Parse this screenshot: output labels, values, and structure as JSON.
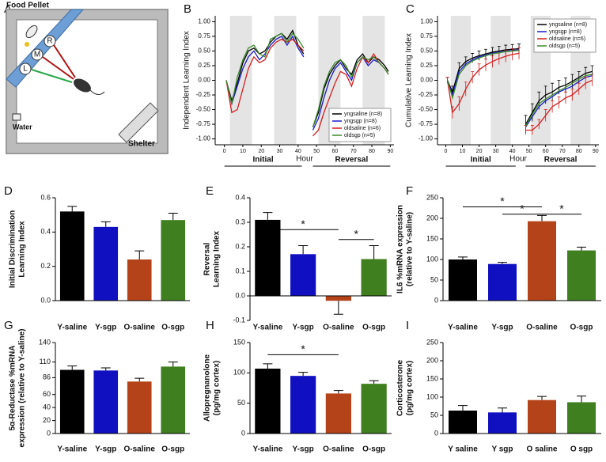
{
  "panel_a": {
    "panel": "A",
    "food": "Food Pellet",
    "r": "R",
    "m": "M",
    "l": "L",
    "water": "Water",
    "shelter": "Shelter"
  },
  "chart_data": [
    {
      "type": "line",
      "panel": "B",
      "ylabel": [
        "Independent Learning Index"
      ],
      "xlabel": "Hour",
      "legend": "lower right",
      "xlim": [
        -5,
        92
      ],
      "xticks": [
        0,
        10,
        20,
        30,
        40,
        50,
        60,
        70,
        80,
        90
      ],
      "ylim": [
        -1.1,
        1.1
      ],
      "yticks": [
        {
          "value": -1,
          "label": "-1.00"
        },
        -0.75,
        {
          "value": -0.5,
          "label": "-0.50"
        },
        -0.25,
        {
          "value": 0,
          "label": "0.00"
        },
        0.25,
        {
          "value": 0.5,
          "label": "0.50"
        },
        0.75,
        {
          "value": 1,
          "label": "1.00"
        }
      ],
      "shaded": [
        [
          3,
          15
        ],
        [
          27,
          39
        ],
        [
          51,
          63
        ],
        [
          75,
          87
        ]
      ],
      "x_groups": [
        {
          "label": "Initial",
          "range": [
            0,
            42
          ]
        },
        {
          "label": "Reversal",
          "range": [
            48,
            90
          ]
        }
      ],
      "x": [
        1,
        4,
        7,
        10,
        13,
        16,
        19,
        22,
        25,
        28,
        31,
        34,
        37,
        40,
        43,
        46,
        48,
        51,
        54,
        57,
        60,
        63,
        66,
        69,
        72,
        75,
        78,
        81,
        84,
        87,
        89
      ],
      "series": [
        {
          "name": "yngsaline (n=8)",
          "color": "#000000",
          "values": [
            0,
            -0.35,
            -0.05,
            0.3,
            0.5,
            0.55,
            0.45,
            0.5,
            0.65,
            0.75,
            0.8,
            0.7,
            0.85,
            0.6,
            0.45,
            null,
            -0.8,
            -0.55,
            -0.15,
            0.1,
            0.25,
            0.35,
            0.2,
            0.1,
            0.35,
            0.45,
            0.3,
            0.4,
            0.35,
            0.25,
            0.15
          ]
        },
        {
          "name": "yngsgp (n=8)",
          "color": "#1a1acc",
          "values": [
            0,
            -0.4,
            -0.1,
            0.2,
            0.4,
            0.5,
            0.35,
            0.45,
            0.6,
            0.7,
            0.75,
            0.6,
            0.75,
            0.55,
            0.4,
            null,
            -0.85,
            -0.65,
            -0.3,
            0,
            0.2,
            0.3,
            0.15,
            0,
            0.3,
            0.4,
            0.25,
            0.35,
            0.3,
            0.2,
            0.1
          ]
        },
        {
          "name": "oldsaline (n=6)",
          "color": "#d41f1f",
          "values": [
            0,
            -0.55,
            -0.5,
            -0.15,
            0.2,
            0.4,
            0.3,
            0.35,
            0.55,
            0.65,
            0.7,
            0.65,
            0.7,
            0.6,
            0.5,
            null,
            -0.95,
            -0.85,
            -0.55,
            -0.3,
            -0.05,
            0.15,
            0.1,
            -0.1,
            0.2,
            0.4,
            0.3,
            0.45,
            0.3,
            0.2,
            0.1
          ]
        },
        {
          "name": "oldsgp (n=5)",
          "color": "#3a8a2a",
          "values": [
            0,
            -0.4,
            0.05,
            0.35,
            0.55,
            0.6,
            0.45,
            0.4,
            0.7,
            0.75,
            0.8,
            0.65,
            0.8,
            0.7,
            0.55,
            null,
            -0.8,
            -0.5,
            -0.1,
            0.15,
            0.3,
            0.35,
            0.25,
            0.05,
            0.3,
            0.4,
            0.35,
            0.4,
            0.3,
            0.2,
            0.1
          ]
        }
      ]
    },
    {
      "type": "line",
      "panel": "C",
      "ylabel": [
        "Cumulative Learning Index"
      ],
      "xlabel": "Hour",
      "legend": "upper right",
      "xlim": [
        -5,
        92
      ],
      "xticks": [
        0,
        10,
        20,
        30,
        40,
        50,
        60,
        70,
        80,
        90
      ],
      "ylim": [
        -1.1,
        1.1
      ],
      "yticks": [
        {
          "value": -1,
          "label": "-1.00"
        },
        -0.75,
        {
          "value": -0.5,
          "label": "-0.50"
        },
        -0.25,
        {
          "value": 0,
          "label": "0.00"
        },
        0.25,
        {
          "value": 0.5,
          "label": "0.50"
        },
        0.75,
        {
          "value": 1,
          "label": "1.00"
        }
      ],
      "shaded": [
        [
          3,
          15
        ],
        [
          27,
          39
        ],
        [
          51,
          63
        ],
        [
          75,
          87
        ]
      ],
      "x_groups": [
        {
          "label": "Initial",
          "range": [
            0,
            42
          ]
        },
        {
          "label": "Reversal",
          "range": [
            48,
            90
          ]
        }
      ],
      "x": [
        1,
        4,
        8,
        12,
        16,
        20,
        24,
        28,
        32,
        36,
        40,
        44,
        46,
        48,
        52,
        56,
        60,
        64,
        68,
        72,
        76,
        80,
        84,
        88
      ],
      "series": [
        {
          "name": "yngsaline (n=8)",
          "color": "#000000",
          "values": [
            0,
            -0.2,
            0.2,
            0.32,
            0.38,
            0.42,
            0.45,
            0.48,
            0.5,
            0.52,
            0.53,
            0.54,
            null,
            -0.75,
            -0.55,
            -0.35,
            -0.25,
            -0.2,
            -0.12,
            -0.08,
            -0.02,
            0.05,
            0.12,
            0.15
          ],
          "errors": [
            0.05,
            0.1,
            0.1,
            0.08,
            0.08,
            0.08,
            0.08,
            0.08,
            0.08,
            0.08,
            0.08,
            0.08,
            null,
            0.15,
            0.15,
            0.15,
            0.15,
            0.15,
            0.12,
            0.12,
            0.12,
            0.1,
            0.1,
            0.1
          ]
        },
        {
          "name": "yngsgp (n=8)",
          "color": "#1a1acc",
          "values": [
            0,
            -0.25,
            0.15,
            0.28,
            0.35,
            0.4,
            0.43,
            0.46,
            0.48,
            0.5,
            0.51,
            0.52,
            null,
            -0.8,
            -0.62,
            -0.45,
            -0.35,
            -0.28,
            -0.2,
            -0.15,
            -0.1,
            -0.02,
            0.05,
            0.08
          ]
        },
        {
          "name": "oldsaline (n=6)",
          "color": "#d41f1f",
          "values": [
            0,
            -0.55,
            -0.4,
            -0.15,
            0.05,
            0.18,
            0.26,
            0.32,
            0.37,
            0.41,
            0.44,
            0.46,
            null,
            -0.85,
            -0.85,
            -0.75,
            -0.6,
            -0.45,
            -0.38,
            -0.3,
            -0.25,
            -0.15,
            -0.05,
            0
          ],
          "errors": [
            0.05,
            0.1,
            0.12,
            0.12,
            0.1,
            0.1,
            0.1,
            0.1,
            0.1,
            0.1,
            0.1,
            0.1,
            null,
            0.08,
            0.08,
            0.08,
            0.1,
            0.1,
            0.1,
            0.1,
            0.1,
            0.1,
            0.1,
            0.1
          ]
        },
        {
          "name": "oldsgp (n=5)",
          "color": "#3a8a2a",
          "values": [
            0,
            -0.3,
            0.1,
            0.25,
            0.33,
            0.38,
            0.42,
            0.45,
            0.47,
            0.49,
            0.5,
            0.51,
            null,
            -0.78,
            -0.58,
            -0.4,
            -0.32,
            -0.25,
            -0.18,
            -0.12,
            -0.05,
            0.02,
            0.08,
            0.1
          ]
        }
      ]
    },
    {
      "type": "bar",
      "panel": "D",
      "ylabel": [
        "Initial Discrimination",
        "Learning Index"
      ],
      "categories": [
        "Y-saline",
        "Y-sgp",
        "O-saline",
        "O-sgp"
      ],
      "colors": [
        "#000000",
        "#1010c0",
        "#b5431a",
        "#3f7f1f"
      ],
      "values": [
        0.52,
        0.43,
        0.24,
        0.47
      ],
      "errors": [
        0.03,
        0.03,
        0.05,
        0.04
      ],
      "ylim": [
        0,
        0.6
      ],
      "yticks": [
        {
          "value": 0,
          "label": "0.0"
        },
        0.2,
        0.4,
        0.6
      ],
      "significance": []
    },
    {
      "type": "bar",
      "panel": "E",
      "ylabel": [
        "Reversal",
        "Learning Index"
      ],
      "categories": [
        "Y-saline",
        "Y-sgp",
        "O-saline",
        "O-sgp"
      ],
      "colors": [
        "#000000",
        "#1010c0",
        "#b5431a",
        "#3f7f1f"
      ],
      "values": [
        0.31,
        0.17,
        -0.02,
        0.15
      ],
      "errors": [
        0.03,
        0.035,
        0.055,
        0.055
      ],
      "ylim": [
        -0.1,
        0.4
      ],
      "yticks": [
        -0.1,
        {
          "value": 0,
          "label": "0.0"
        },
        0.1,
        0.2,
        0.3,
        0.4
      ],
      "significance": [
        {
          "from": 0,
          "to": 2,
          "y": 0.27,
          "label": "*"
        },
        {
          "from": 2,
          "to": 3,
          "y": 0.23,
          "label": "*"
        }
      ]
    },
    {
      "type": "bar",
      "panel": "F",
      "ylabel": [
        "IL6 %mRNA expression",
        "(relative to Y-saline)"
      ],
      "categories": [
        "Y-saline",
        "Y-sgp",
        "O-saline",
        "O-sgp"
      ],
      "colors": [
        "#000000",
        "#1010c0",
        "#b5431a",
        "#3f7f1f"
      ],
      "values": [
        100,
        89,
        193,
        122
      ],
      "errors": [
        6,
        4,
        14,
        8
      ],
      "ylim": [
        0,
        250
      ],
      "yticks": [
        0,
        50,
        100,
        150,
        200,
        250
      ],
      "significance": [
        {
          "from": 0,
          "to": 2,
          "y": 228,
          "label": "*"
        },
        {
          "from": 1,
          "to": 2,
          "y": 210,
          "label": "*"
        },
        {
          "from": 2,
          "to": 3,
          "y": 210,
          "label": "*"
        }
      ]
    },
    {
      "type": "bar",
      "panel": "G",
      "ylabel": [
        "5α-Reductase %mRNA",
        "expression (relative to Y-saline)"
      ],
      "categories": [
        "Y-saline",
        "Y-sgp",
        "O-saline",
        "O-sgp"
      ],
      "colors": [
        "#000000",
        "#1010c0",
        "#b5431a",
        "#3f7f1f"
      ],
      "values": [
        98,
        97,
        80,
        103
      ],
      "errors": [
        6,
        4,
        5,
        7
      ],
      "ylim": [
        0,
        140
      ],
      "yticks": [
        0,
        20,
        40,
        60,
        86,
        110,
        140
      ],
      "significance": []
    },
    {
      "type": "bar",
      "panel": "H",
      "ylabel": [
        "Allopregnanolone",
        "(pg/mg cortex)"
      ],
      "categories": [
        "Y-saline",
        "Y-sgp",
        "O-saline",
        "O-sgp"
      ],
      "colors": [
        "#000000",
        "#1010c0",
        "#b5431a",
        "#3f7f1f"
      ],
      "values": [
        107,
        95,
        66,
        82
      ],
      "errors": [
        8,
        6,
        5,
        5
      ],
      "ylim": [
        0,
        150
      ],
      "yticks": [
        0,
        50,
        100,
        150
      ],
      "significance": [
        {
          "from": 0,
          "to": 2,
          "y": 130,
          "label": "*"
        }
      ]
    },
    {
      "type": "bar",
      "panel": "I",
      "ylabel": [
        "Corticosterone",
        "(pg/mg cortex)"
      ],
      "categories": [
        "Y saline",
        "Y sgp",
        "O saline",
        "O sgp"
      ],
      "colors": [
        "#000000",
        "#1010c0",
        "#b5431a",
        "#3f7f1f"
      ],
      "values": [
        63,
        58,
        92,
        86
      ],
      "errors": [
        14,
        12,
        10,
        17
      ],
      "ylim": [
        0,
        250
      ],
      "yticks": [
        0,
        50,
        100,
        150,
        200,
        250
      ],
      "significance": []
    }
  ]
}
